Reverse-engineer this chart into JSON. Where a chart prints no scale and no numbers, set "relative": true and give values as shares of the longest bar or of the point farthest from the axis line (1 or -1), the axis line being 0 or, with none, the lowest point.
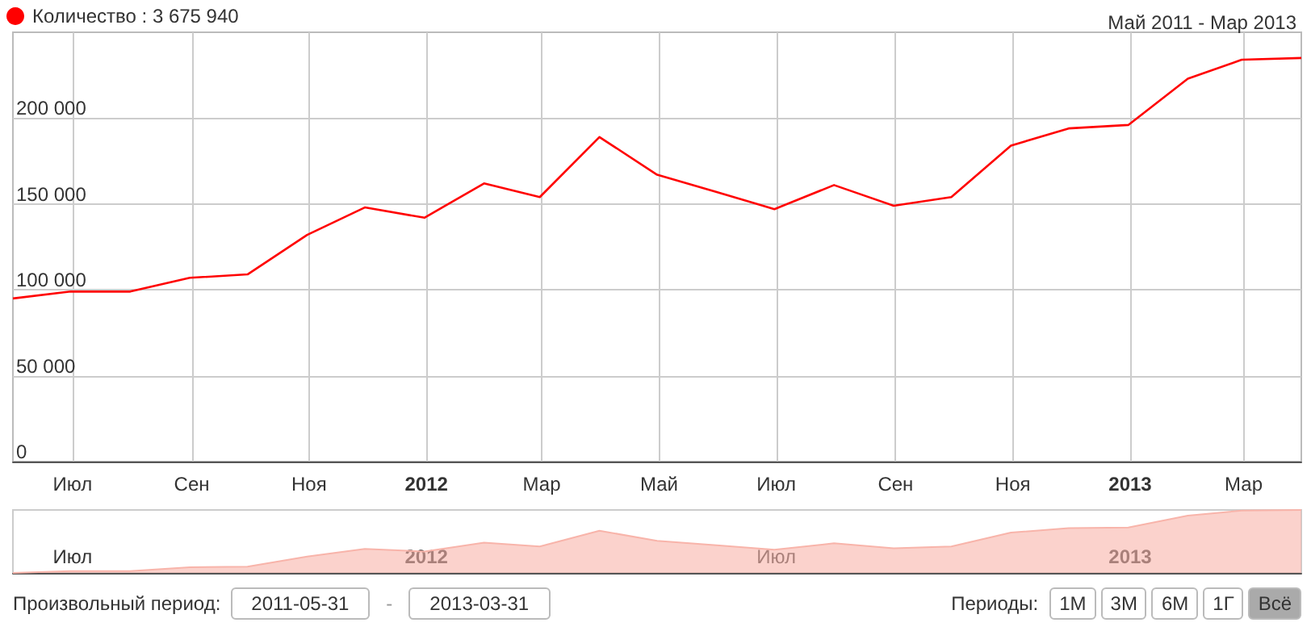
{
  "chart_data": [
    {
      "type": "line",
      "title": "Май 2011 - Мар 2013",
      "legend": "top left",
      "grid": true,
      "marker": "none",
      "line_style": "solid",
      "x": [
        "2011-05-31",
        "2011-06-30",
        "2011-07-31",
        "2011-08-31",
        "2011-09-30",
        "2011-10-31",
        "2011-11-30",
        "2011-12-31",
        "2012-01-31",
        "2012-02-29",
        "2012-03-31",
        "2012-04-30",
        "2012-05-31",
        "2012-06-30",
        "2012-07-31",
        "2012-08-31",
        "2012-09-30",
        "2012-10-31",
        "2012-11-30",
        "2012-12-31",
        "2013-01-31",
        "2013-02-28",
        "2013-03-31"
      ],
      "series": [
        {
          "name": "Количество : 3 675 940",
          "color": "#ff0000",
          "values": [
            95000,
            99000,
            99000,
            107000,
            109000,
            132000,
            148000,
            142000,
            162000,
            154000,
            189000,
            167000,
            157000,
            147000,
            161000,
            149000,
            154000,
            184000,
            194000,
            196000,
            223000,
            234000,
            235000
          ]
        }
      ],
      "xlim": [
        "2011-05-31",
        "2013-03-31"
      ],
      "xticks": [
        {
          "value": "2011-07-01",
          "label": "Июл"
        },
        {
          "value": "2011-09-01",
          "label": "Сен"
        },
        {
          "value": "2011-11-01",
          "label": "Ноя"
        },
        {
          "value": "2012-01-01",
          "label": "2012"
        },
        {
          "value": "2012-03-01",
          "label": "Мар"
        },
        {
          "value": "2012-05-01",
          "label": "Май"
        },
        {
          "value": "2012-07-01",
          "label": "Июл"
        },
        {
          "value": "2012-09-01",
          "label": "Сен"
        },
        {
          "value": "2012-11-01",
          "label": "Ноя"
        },
        {
          "value": "2013-01-01",
          "label": "2013"
        },
        {
          "value": "2013-03-01",
          "label": "Мар"
        }
      ],
      "ylim": [
        0,
        250000
      ],
      "yticks": [
        0,
        {
          "value": 50000,
          "label": "50 000"
        },
        {
          "value": 100000,
          "label": "100 000"
        },
        {
          "value": 150000,
          "label": "150 000"
        },
        {
          "value": 200000,
          "label": "200 000"
        }
      ]
    },
    {
      "type": "area",
      "relative": true,
      "tick_labels": "x",
      "x": [
        "2011-05-31",
        "2011-06-30",
        "2011-07-31",
        "2011-08-31",
        "2011-09-30",
        "2011-10-31",
        "2011-11-30",
        "2011-12-31",
        "2012-01-31",
        "2012-02-29",
        "2012-03-31",
        "2012-04-30",
        "2012-05-31",
        "2012-06-30",
        "2012-07-31",
        "2012-08-31",
        "2012-09-30",
        "2012-10-31",
        "2012-11-30",
        "2012-12-31",
        "2013-01-31",
        "2013-02-28",
        "2013-03-31"
      ],
      "series": [
        {
          "color": "#f8b4aa",
          "values": [
            0,
            0.03,
            0.03,
            0.09,
            0.1,
            0.26,
            0.38,
            0.34,
            0.48,
            0.42,
            0.67,
            0.51,
            0.44,
            0.37,
            0.47,
            0.39,
            0.42,
            0.64,
            0.71,
            0.72,
            0.91,
            0.99,
            1
          ]
        }
      ],
      "xlim": [
        "2011-05-31",
        "2013-03-31"
      ],
      "xticks": [
        {
          "value": "2011-07-01",
          "label": "Июл"
        },
        {
          "value": "2012-01-01",
          "label": "2012"
        },
        {
          "value": "2012-07-01",
          "label": "Июл"
        },
        {
          "value": "2013-01-01",
          "label": "2013"
        }
      ],
      "annotations": [
        "Произвольный период:",
        "2011-05-31",
        "-",
        "2013-03-31",
        "Периоды:",
        "1М",
        "3М",
        "6М",
        "1Г",
        "Всё"
      ]
    }
  ]
}
